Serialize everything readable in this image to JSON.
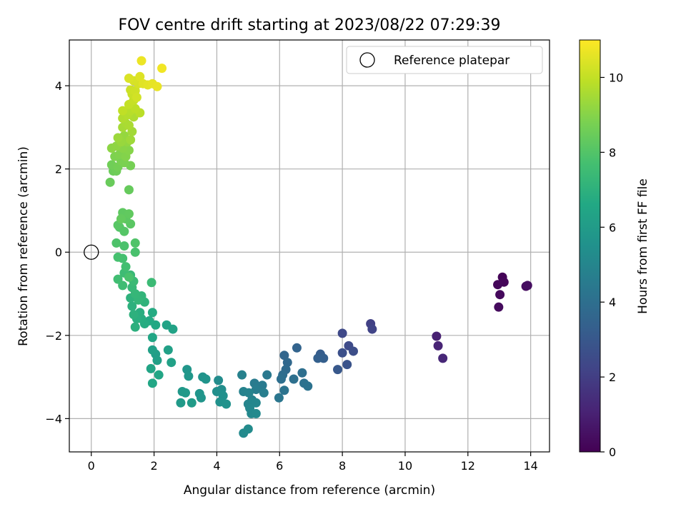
{
  "chart_data": {
    "type": "scatter",
    "title": "FOV centre drift starting at 2023/08/22 07:29:39",
    "xlabel": "Angular distance from reference (arcmin)",
    "ylabel": "Rotation from reference (arcmin)",
    "xlim": [
      -0.7,
      14.6
    ],
    "ylim": [
      -4.8,
      5.1
    ],
    "xticks": [
      0,
      2,
      4,
      6,
      8,
      10,
      12,
      14
    ],
    "yticks": [
      -4,
      -2,
      0,
      2,
      4
    ],
    "grid": true,
    "legend": {
      "position": "top-right",
      "entries": [
        "Reference platepar"
      ]
    },
    "reference_point": {
      "x": 0,
      "y": 0
    },
    "colorbar": {
      "label": "Hours from first FF file",
      "min": 0,
      "max": 11,
      "ticks": [
        0,
        2,
        4,
        6,
        8,
        10
      ],
      "colormap": "viridis"
    },
    "points": [
      [
        13.1,
        -0.6,
        0.1
      ],
      [
        13.15,
        -0.72,
        0.15
      ],
      [
        12.95,
        -0.78,
        0.2
      ],
      [
        13.02,
        -1.02,
        0.25
      ],
      [
        12.98,
        -1.32,
        0.3
      ],
      [
        13.85,
        -0.82,
        0.35
      ],
      [
        13.9,
        -0.8,
        0.4
      ],
      [
        11.0,
        -2.02,
        1.0
      ],
      [
        11.05,
        -2.25,
        1.1
      ],
      [
        11.2,
        -2.55,
        1.2
      ],
      [
        8.9,
        -1.72,
        2.1
      ],
      [
        8.95,
        -1.85,
        2.2
      ],
      [
        8.0,
        -1.95,
        2.4
      ],
      [
        8.2,
        -2.25,
        2.5
      ],
      [
        8.35,
        -2.38,
        2.6
      ],
      [
        8.0,
        -2.42,
        2.7
      ],
      [
        8.15,
        -2.7,
        2.8
      ],
      [
        7.85,
        -2.82,
        3.0
      ],
      [
        7.3,
        -2.45,
        3.2
      ],
      [
        7.4,
        -2.55,
        3.3
      ],
      [
        7.22,
        -2.55,
        3.35
      ],
      [
        6.55,
        -2.3,
        3.5
      ],
      [
        6.15,
        -2.48,
        3.6
      ],
      [
        6.25,
        -2.65,
        3.7
      ],
      [
        6.2,
        -2.82,
        3.8
      ],
      [
        6.1,
        -2.95,
        3.9
      ],
      [
        6.05,
        -3.05,
        4.0
      ],
      [
        6.72,
        -2.9,
        4.0
      ],
      [
        6.45,
        -3.05,
        4.05
      ],
      [
        6.78,
        -3.15,
        4.1
      ],
      [
        6.9,
        -3.22,
        4.15
      ],
      [
        6.15,
        -3.32,
        4.2
      ],
      [
        5.98,
        -3.5,
        4.3
      ],
      [
        5.6,
        -2.95,
        4.4
      ],
      [
        5.45,
        -3.2,
        4.5
      ],
      [
        5.2,
        -3.15,
        4.55
      ],
      [
        5.25,
        -3.3,
        4.6
      ],
      [
        5.5,
        -3.38,
        4.65
      ],
      [
        5.12,
        -3.55,
        4.7
      ],
      [
        4.8,
        -2.95,
        4.8
      ],
      [
        4.85,
        -3.35,
        4.85
      ],
      [
        5.02,
        -3.38,
        4.9
      ],
      [
        5.0,
        -3.65,
        4.95
      ],
      [
        5.15,
        -3.6,
        5.0
      ],
      [
        5.25,
        -3.62,
        5.0
      ],
      [
        5.05,
        -3.75,
        5.05
      ],
      [
        5.1,
        -3.88,
        5.1
      ],
      [
        5.25,
        -3.88,
        5.15
      ],
      [
        4.85,
        -4.35,
        5.2
      ],
      [
        5.0,
        -4.25,
        5.25
      ],
      [
        4.05,
        -3.08,
        5.3
      ],
      [
        4.15,
        -3.3,
        5.35
      ],
      [
        4.0,
        -3.35,
        5.4
      ],
      [
        4.2,
        -3.45,
        5.45
      ],
      [
        4.1,
        -3.6,
        5.5
      ],
      [
        4.3,
        -3.65,
        5.55
      ],
      [
        3.55,
        -3.0,
        5.6
      ],
      [
        3.65,
        -3.05,
        5.65
      ],
      [
        3.45,
        -3.4,
        5.7
      ],
      [
        3.5,
        -3.5,
        5.7
      ],
      [
        3.05,
        -2.82,
        5.75
      ],
      [
        3.1,
        -2.98,
        5.8
      ],
      [
        2.9,
        -3.35,
        5.85
      ],
      [
        3.0,
        -3.38,
        5.9
      ],
      [
        2.85,
        -3.62,
        5.95
      ],
      [
        3.2,
        -3.62,
        6.0
      ],
      [
        2.05,
        -2.45,
        6.1
      ],
      [
        2.1,
        -2.6,
        6.15
      ],
      [
        1.95,
        -2.35,
        6.2
      ],
      [
        2.45,
        -2.35,
        6.2
      ],
      [
        2.55,
        -2.65,
        6.25
      ],
      [
        2.6,
        -1.85,
        6.3
      ],
      [
        2.4,
        -1.75,
        6.35
      ],
      [
        1.9,
        -2.8,
        6.4
      ],
      [
        2.15,
        -2.95,
        6.45
      ],
      [
        1.95,
        -3.15,
        6.5
      ],
      [
        1.95,
        -2.05,
        6.5
      ],
      [
        2.05,
        -1.75,
        6.6
      ],
      [
        1.85,
        -1.65,
        6.65
      ],
      [
        1.95,
        -1.45,
        6.7
      ],
      [
        1.7,
        -1.72,
        6.75
      ],
      [
        1.6,
        -1.6,
        6.8
      ],
      [
        1.55,
        -1.45,
        6.85
      ],
      [
        1.45,
        -1.6,
        6.9
      ],
      [
        1.4,
        -1.8,
        6.95
      ],
      [
        1.35,
        -1.5,
        7.0
      ],
      [
        1.3,
        -1.3,
        7.0
      ],
      [
        1.25,
        -1.1,
        7.05
      ],
      [
        1.7,
        -1.2,
        7.1
      ],
      [
        1.6,
        -1.05,
        7.15
      ],
      [
        1.5,
        -1.15,
        7.2
      ],
      [
        1.4,
        -1.0,
        7.25
      ],
      [
        1.3,
        -0.85,
        7.3
      ],
      [
        1.25,
        -0.55,
        7.35
      ],
      [
        1.35,
        -0.7,
        7.4
      ],
      [
        1.92,
        -0.73,
        7.45
      ],
      [
        1.05,
        -0.5,
        7.5
      ],
      [
        1.0,
        -0.8,
        7.55
      ],
      [
        0.85,
        -0.65,
        7.6
      ],
      [
        1.1,
        -0.35,
        7.65
      ],
      [
        1.0,
        -0.15,
        7.7
      ],
      [
        0.85,
        -0.12,
        7.75
      ],
      [
        1.2,
        -0.6,
        7.8
      ],
      [
        1.4,
        0.0,
        7.8
      ],
      [
        1.05,
        0.15,
        7.85
      ],
      [
        0.8,
        0.22,
        7.9
      ],
      [
        1.4,
        0.22,
        7.95
      ],
      [
        0.9,
        0.6,
        8.0
      ],
      [
        1.05,
        0.5,
        8.05
      ],
      [
        0.85,
        0.65,
        8.1
      ],
      [
        1.25,
        0.68,
        8.15
      ],
      [
        1.1,
        0.8,
        8.2
      ],
      [
        1.0,
        0.95,
        8.25
      ],
      [
        1.2,
        0.92,
        8.3
      ],
      [
        0.95,
        0.8,
        8.35
      ],
      [
        1.2,
        1.5,
        8.4
      ],
      [
        0.6,
        1.68,
        8.45
      ],
      [
        0.7,
        1.95,
        8.5
      ],
      [
        0.8,
        1.95,
        8.55
      ],
      [
        0.65,
        2.1,
        8.6
      ],
      [
        0.85,
        2.05,
        8.65
      ],
      [
        1.25,
        2.08,
        8.7
      ],
      [
        0.95,
        2.2,
        8.75
      ],
      [
        1.05,
        2.15,
        8.8
      ],
      [
        0.75,
        2.3,
        8.85
      ],
      [
        0.9,
        2.35,
        8.9
      ],
      [
        1.1,
        2.3,
        8.95
      ],
      [
        1.2,
        2.45,
        9.0
      ],
      [
        1.0,
        2.5,
        9.05
      ],
      [
        0.65,
        2.5,
        9.1
      ],
      [
        0.8,
        2.55,
        9.15
      ],
      [
        1.15,
        2.65,
        9.2
      ],
      [
        1.05,
        2.8,
        9.25
      ],
      [
        0.95,
        2.65,
        9.3
      ],
      [
        0.85,
        2.75,
        9.35
      ],
      [
        1.25,
        2.7,
        9.4
      ],
      [
        1.3,
        2.9,
        9.45
      ],
      [
        1.0,
        3.0,
        9.5
      ],
      [
        1.1,
        3.1,
        9.55
      ],
      [
        1.2,
        3.05,
        9.6
      ],
      [
        1.35,
        3.25,
        9.65
      ],
      [
        1.0,
        3.22,
        9.7
      ],
      [
        1.15,
        3.3,
        9.75
      ],
      [
        1.25,
        3.4,
        9.8
      ],
      [
        1.55,
        3.35,
        9.85
      ],
      [
        1.4,
        3.45,
        9.9
      ],
      [
        1.0,
        3.4,
        9.95
      ],
      [
        1.2,
        3.55,
        10.0
      ],
      [
        1.35,
        3.65,
        10.05
      ],
      [
        1.3,
        3.8,
        10.1
      ],
      [
        1.25,
        3.9,
        10.15
      ],
      [
        1.4,
        3.88,
        10.2
      ],
      [
        1.45,
        3.72,
        10.25
      ],
      [
        1.5,
        4.05,
        10.3
      ],
      [
        1.35,
        4.12,
        10.35
      ],
      [
        1.2,
        4.18,
        10.4
      ],
      [
        1.55,
        4.22,
        10.45
      ],
      [
        1.65,
        4.05,
        10.5
      ],
      [
        1.8,
        4.02,
        10.55
      ],
      [
        1.95,
        4.05,
        10.6
      ],
      [
        2.1,
        3.98,
        10.65
      ],
      [
        1.6,
        4.6,
        10.7
      ],
      [
        2.25,
        4.42,
        10.8
      ]
    ]
  }
}
